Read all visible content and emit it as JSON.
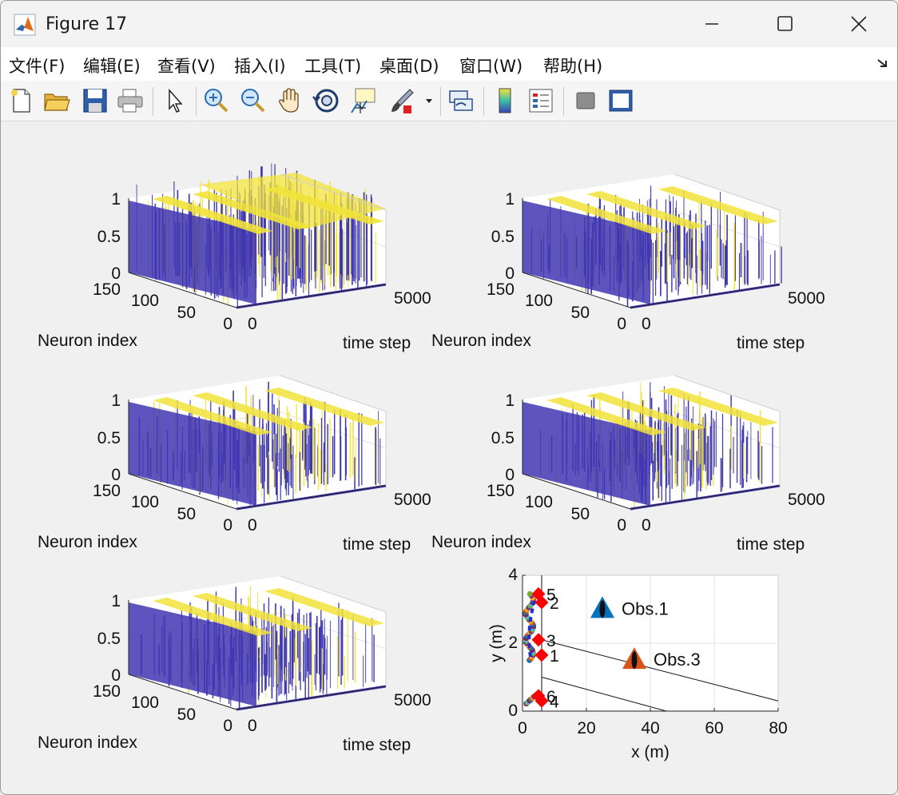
{
  "window": {
    "title": "Figure 17"
  },
  "menu": [
    "文件(F)",
    "编辑(E)",
    "查看(V)",
    "插入(I)",
    "工具(T)",
    "桌面(D)",
    "窗口(W)",
    "帮助(H)"
  ],
  "toolbar": [
    {
      "name": "new-figure-icon"
    },
    {
      "name": "open-file-icon"
    },
    {
      "name": "save-icon"
    },
    {
      "name": "print-icon"
    },
    {
      "name": "pointer-icon"
    },
    {
      "name": "zoom-in-icon"
    },
    {
      "name": "zoom-out-icon"
    },
    {
      "name": "pan-hand-icon"
    },
    {
      "name": "rotate-3d-icon"
    },
    {
      "name": "data-cursor-icon"
    },
    {
      "name": "brush-icon"
    },
    {
      "name": "link-plot-icon"
    },
    {
      "name": "colorbar-icon"
    },
    {
      "name": "legend-icon"
    },
    {
      "name": "hide-plot-tools-icon"
    },
    {
      "name": "show-plot-tools-icon"
    }
  ],
  "chart_data": [
    {
      "type": "bar3",
      "xlabel": "time step",
      "ylabel": "Neuron index",
      "xticks": [
        "0",
        "5000"
      ],
      "yticks": [
        "150",
        "100",
        "50",
        "0"
      ],
      "zticks": [
        "1",
        "0.5",
        "0"
      ]
    },
    {
      "type": "bar3",
      "xlabel": "time step",
      "ylabel": "Neuron index",
      "xticks": [
        "0",
        "5000"
      ],
      "yticks": [
        "150",
        "100",
        "50",
        "0"
      ],
      "zticks": [
        "1",
        "0.5",
        "0"
      ]
    },
    {
      "type": "bar3",
      "xlabel": "time step",
      "ylabel": "Neuron index",
      "xticks": [
        "0",
        "5000"
      ],
      "yticks": [
        "150",
        "100",
        "50",
        "0"
      ],
      "zticks": [
        "1",
        "0.5",
        "0"
      ]
    },
    {
      "type": "bar3",
      "xlabel": "time step",
      "ylabel": "Neuron index",
      "xticks": [
        "0",
        "5000"
      ],
      "yticks": [
        "150",
        "100",
        "50",
        "0"
      ],
      "zticks": [
        "1",
        "0.5",
        "0"
      ]
    },
    {
      "type": "bar3",
      "xlabel": "time step",
      "ylabel": "Neuron index",
      "xticks": [
        "0",
        "5000"
      ],
      "yticks": [
        "150",
        "100",
        "50",
        "0"
      ],
      "zticks": [
        "1",
        "0.5",
        "0"
      ]
    },
    {
      "type": "scatter",
      "xlabel": "x (m)",
      "ylabel": "y (m)",
      "xlim": [
        0,
        80
      ],
      "ylim": [
        0,
        4
      ],
      "xticks": [
        "0",
        "20",
        "40",
        "60",
        "80"
      ],
      "yticks": [
        "0",
        "2",
        "4"
      ],
      "grid": true,
      "agents": [
        {
          "label": "1",
          "x": 6,
          "y": 1.65
        },
        {
          "label": "2",
          "x": 6,
          "y": 3.2
        },
        {
          "label": "3",
          "x": 5,
          "y": 2.1
        },
        {
          "label": "4",
          "x": 6,
          "y": 0.3
        },
        {
          "label": "5",
          "x": 5,
          "y": 3.45
        },
        {
          "label": "6",
          "x": 5,
          "y": 0.45
        }
      ],
      "obstacles": [
        {
          "label": "Obs.1",
          "x": 25,
          "y": 3.05,
          "color": "#0072bd"
        },
        {
          "label": "Obs.3",
          "x": 35,
          "y": 1.55,
          "color": "#d95319"
        }
      ],
      "lines": [
        {
          "x": [
            6,
            80
          ],
          "y": [
            2.1,
            0.3
          ]
        },
        {
          "x": [
            6,
            45
          ],
          "y": [
            1.0,
            0.0
          ]
        },
        {
          "x": [
            6,
            6
          ],
          "y": [
            0,
            4
          ]
        }
      ]
    }
  ]
}
